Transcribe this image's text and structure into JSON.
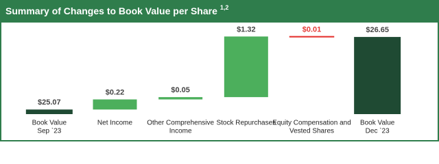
{
  "chart_data": {
    "type": "waterfall",
    "title": "Summary of Changes to Book Value per Share",
    "title_superscript": "1,2",
    "categories": [
      [
        "Book Value",
        "Sep `23"
      ],
      [
        "Net Income"
      ],
      [
        "Other Comprehensive",
        "Income"
      ],
      [
        "Stock Repurchases"
      ],
      [
        "Equity Compensation and",
        "Vested Shares"
      ],
      [
        "Book Value",
        "Dec `23"
      ]
    ],
    "values": [
      25.07,
      0.22,
      0.05,
      1.32,
      -0.01,
      26.65
    ],
    "value_labels": [
      "$25.07",
      "$0.22",
      "$0.05",
      "$1.32",
      "$0.01",
      "$26.65"
    ],
    "colors": {
      "total": "#1f4a33",
      "increase": "#4caf5c",
      "decrease": "#e53935"
    },
    "header_color": "#2f7d4c",
    "ylim": [
      24.97,
      26.8
    ]
  }
}
